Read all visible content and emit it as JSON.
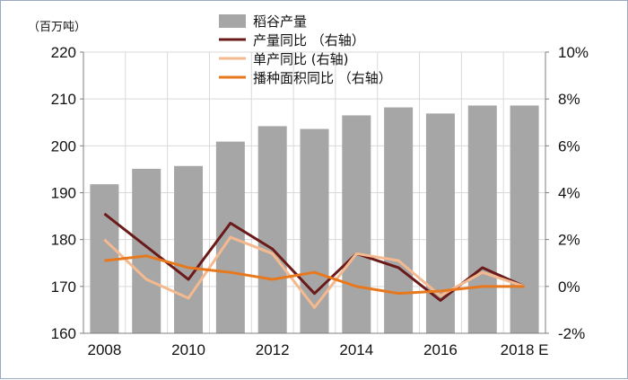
{
  "chart_data": {
    "type": "bar",
    "y_unit_label": "（百万吨）",
    "categories": [
      "2008",
      "2009",
      "2010",
      "2011",
      "2012",
      "2013",
      "2014",
      "2015",
      "2016",
      "2017",
      "2018 E"
    ],
    "x_tick_labels": [
      "2008",
      "2010",
      "2012",
      "2014",
      "2016",
      "2018 E"
    ],
    "left_axis": {
      "ylim": [
        160,
        220
      ],
      "ticks": [
        "160",
        "170",
        "180",
        "190",
        "200",
        "210",
        "220"
      ]
    },
    "right_axis": {
      "ylim": [
        -2,
        10
      ],
      "ticks": [
        "-2%",
        "0%",
        "2%",
        "4%",
        "6%",
        "8%",
        "10%"
      ]
    },
    "series": [
      {
        "name": "稻谷产量",
        "kind": "bar",
        "axis": "left",
        "color": "#a6a6a6",
        "values": [
          191.8,
          195.1,
          195.7,
          200.9,
          204.2,
          203.6,
          206.5,
          208.2,
          206.9,
          208.6,
          208.6
        ]
      },
      {
        "name": "产量同比 （右轴）",
        "kind": "line",
        "axis": "right",
        "color": "#6b1a1a",
        "values": [
          3.1,
          1.7,
          0.3,
          2.7,
          1.6,
          -0.3,
          1.4,
          0.8,
          -0.6,
          0.8,
          0.0
        ]
      },
      {
        "name": "单产同比 (右轴)",
        "kind": "line",
        "axis": "right",
        "color": "#f5b98f",
        "values": [
          2.0,
          0.3,
          -0.5,
          2.1,
          1.4,
          -0.9,
          1.4,
          1.1,
          -0.4,
          0.6,
          0.0
        ]
      },
      {
        "name": "播种面积同比 （右轴）",
        "kind": "line",
        "axis": "right",
        "color": "#e8781e",
        "values": [
          1.1,
          1.3,
          0.8,
          0.6,
          0.3,
          0.6,
          0.0,
          -0.3,
          -0.2,
          0.0,
          0.0
        ]
      }
    ]
  }
}
